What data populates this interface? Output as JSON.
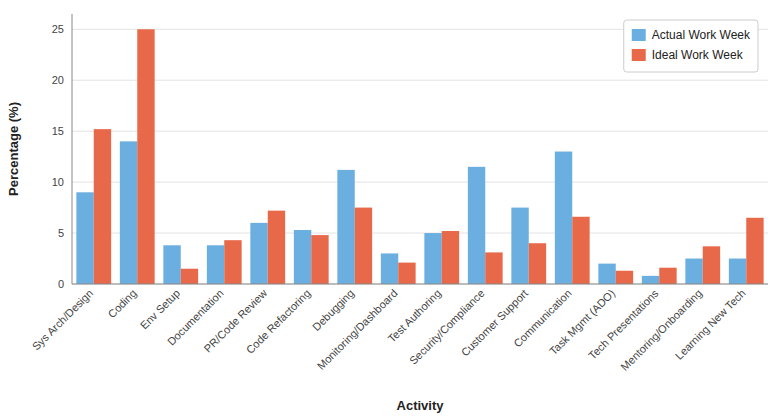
{
  "chart_data": {
    "type": "bar",
    "xlabel": "Activity",
    "ylabel": "Percentage (%)",
    "categories": [
      "Sys Arch/Design",
      "Coding",
      "Env Setup",
      "Documentation",
      "PR/Code Review",
      "Code Refactoring",
      "Debugging",
      "Monitoring/Dashboard",
      "Test Authoring",
      "Security/Compliance",
      "Customer Support",
      "Communication",
      "Task Mgmt (ADO)",
      "Tech Presentations",
      "Mentoring/Onboarding",
      "Learning New Tech"
    ],
    "series": [
      {
        "name": "Actual Work Week",
        "color": "#6aafe0",
        "values": [
          9.0,
          14.0,
          3.8,
          3.8,
          6.0,
          5.3,
          11.2,
          3.0,
          5.0,
          11.5,
          7.5,
          13.0,
          2.0,
          0.8,
          2.5,
          2.5
        ]
      },
      {
        "name": "Ideal Work Week",
        "color": "#e8694a",
        "values": [
          15.2,
          25.0,
          1.5,
          4.3,
          7.2,
          4.8,
          7.5,
          2.1,
          5.2,
          3.1,
          4.0,
          6.6,
          1.3,
          1.6,
          3.7,
          6.5
        ]
      }
    ],
    "ylim": [
      0,
      26.5
    ],
    "yticks": [
      0,
      5,
      10,
      15,
      20,
      25
    ],
    "grid": true,
    "legend": "upper right"
  }
}
